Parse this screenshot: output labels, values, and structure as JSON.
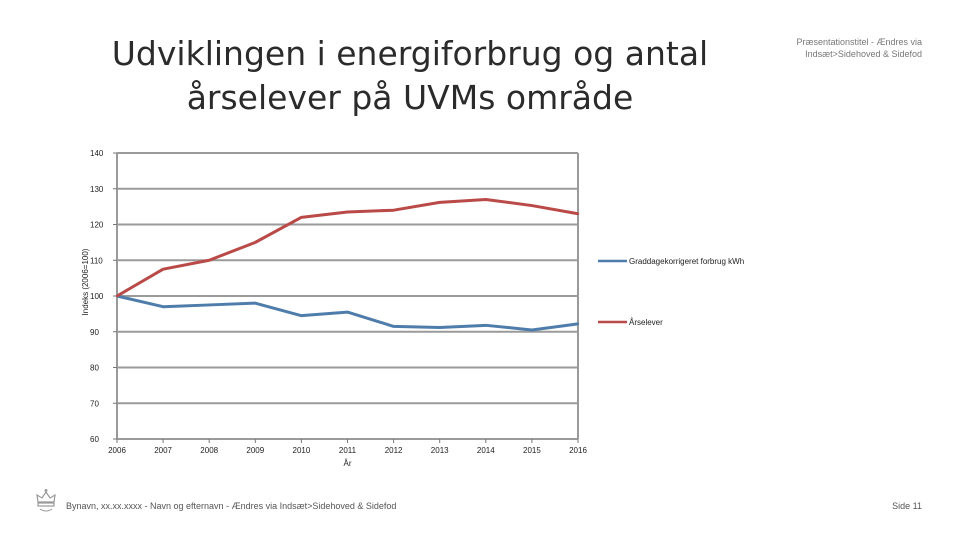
{
  "slide": {
    "title_line1": "Udviklingen i energiforbrug og antal",
    "title_line2": "årselever på UVMs område",
    "header_note_line1": "Præsentationstitel - Ændres via",
    "header_note_line2": "Indsæt>Sidehoved & Sidefod",
    "footer_left": "Bynavn, xx.xx.xxxx - Navn og efternavn - Ændres via Indsæt>Sidehoved & Sidefod",
    "footer_right": "Side 11",
    "logo_icon": "crown-icon"
  },
  "chart_data": {
    "type": "line",
    "title": "",
    "xlabel": "År",
    "ylabel": "Indeks (2006=100)",
    "x": [
      "2006",
      "2007",
      "2008",
      "2009",
      "2010",
      "2011",
      "2012",
      "2013",
      "2014",
      "2015",
      "2016"
    ],
    "ylim": [
      60,
      140
    ],
    "yticks": [
      60,
      70,
      80,
      90,
      100,
      110,
      120,
      130,
      140
    ],
    "grid": true,
    "legend_position": "right",
    "series": [
      {
        "name": "Graddagekorrigeret forbrug kWh",
        "color": "#4f7dab",
        "values": [
          100,
          97,
          97.5,
          98,
          94.5,
          95.5,
          91.5,
          91.2,
          91.8,
          90.5,
          92.2
        ]
      },
      {
        "name": "Årselever",
        "color": "#b94a48",
        "values": [
          100,
          107.5,
          110,
          115,
          122,
          123.5,
          124,
          126.2,
          127,
          125.3,
          123
        ]
      }
    ]
  }
}
